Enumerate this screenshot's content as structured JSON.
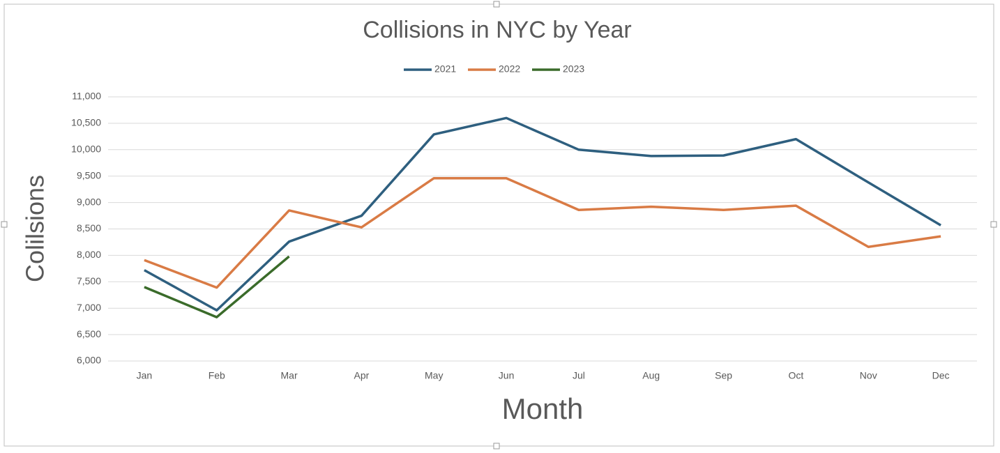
{
  "chart_data": {
    "type": "line",
    "title": "Collisions in NYC by Year",
    "x_label": "Month",
    "y_label": "Colilsions",
    "categories": [
      "Jan",
      "Feb",
      "Mar",
      "Apr",
      "May",
      "Jun",
      "Jul",
      "Aug",
      "Sep",
      "Oct",
      "Nov",
      "Dec"
    ],
    "series": [
      {
        "name": "2021",
        "color": "#2e5f7f",
        "values": [
          7720,
          6960,
          8260,
          8750,
          10290,
          10600,
          10000,
          9880,
          9890,
          10200,
          9380,
          8570
        ]
      },
      {
        "name": "2022",
        "color": "#d97b45",
        "values": [
          7910,
          7390,
          8850,
          8530,
          9460,
          9460,
          8860,
          8920,
          8860,
          8940,
          8160,
          8360
        ]
      },
      {
        "name": "2023",
        "color": "#3a6b2a",
        "values": [
          7400,
          6830,
          7980,
          null,
          null,
          null,
          null,
          null,
          null,
          null,
          null,
          null
        ]
      }
    ],
    "ylim": [
      6000,
      11000
    ],
    "yticks": [
      {
        "value": 6000,
        "label": "6,000"
      },
      {
        "value": 6500,
        "label": "6,500"
      },
      {
        "value": 7000,
        "label": "7,000"
      },
      {
        "value": 7500,
        "label": "7,500"
      },
      {
        "value": 8000,
        "label": "8,000"
      },
      {
        "value": 8500,
        "label": "8,500"
      },
      {
        "value": 9000,
        "label": "9,000"
      },
      {
        "value": 9500,
        "label": "9,500"
      },
      {
        "value": 10000,
        "label": "10,000"
      },
      {
        "value": 10500,
        "label": "10,500"
      },
      {
        "value": 11000,
        "label": "11,000"
      }
    ],
    "grid": true,
    "legend": "top"
  }
}
